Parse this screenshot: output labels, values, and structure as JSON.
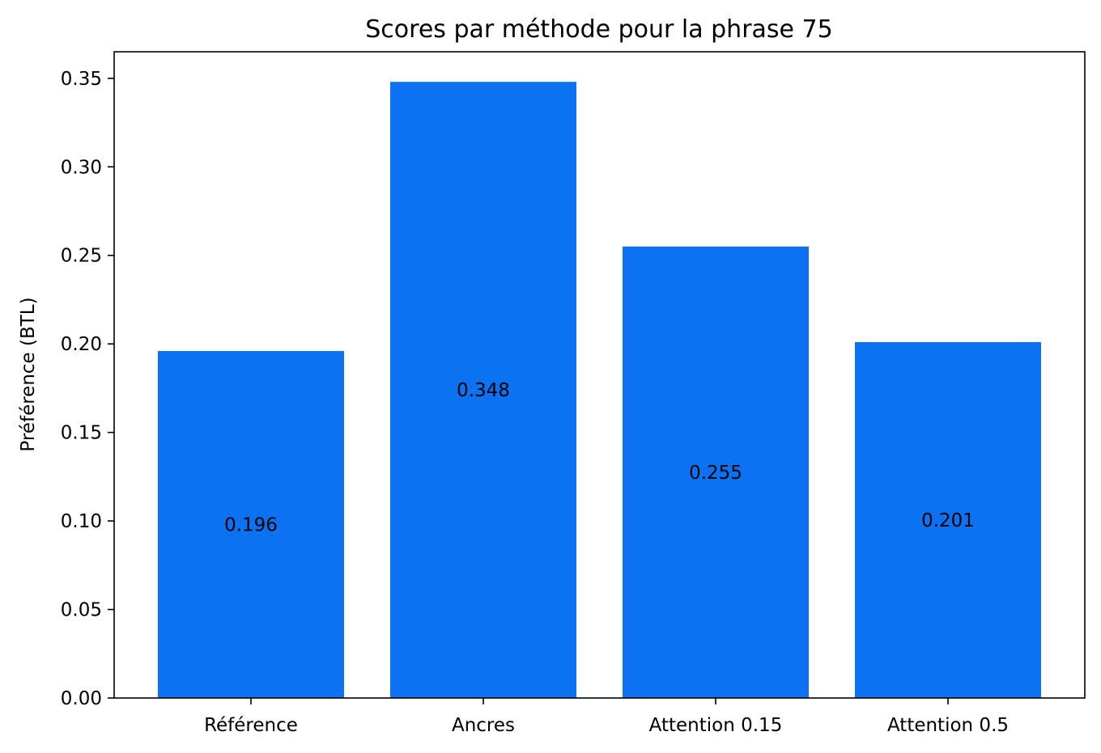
{
  "chart_data": {
    "type": "bar",
    "title": "Scores par méthode pour la phrase 75",
    "xlabel": "",
    "ylabel": "Préférence (BTL)",
    "categories": [
      "Référence",
      "Ancres",
      "Attention 0.15",
      "Attention 0.5"
    ],
    "values": [
      0.196,
      0.348,
      0.255,
      0.201
    ],
    "data_labels": [
      "0.196",
      "0.348",
      "0.255",
      "0.201"
    ],
    "ylim": [
      0,
      0.365
    ],
    "yticks": [
      0.0,
      0.05,
      0.1,
      0.15,
      0.2,
      0.25,
      0.3,
      0.35
    ],
    "ytick_labels": [
      "0.00",
      "0.05",
      "0.10",
      "0.15",
      "0.20",
      "0.25",
      "0.30",
      "0.35"
    ],
    "bar_color": "#0d72f2",
    "grid": false,
    "legend": "none"
  }
}
